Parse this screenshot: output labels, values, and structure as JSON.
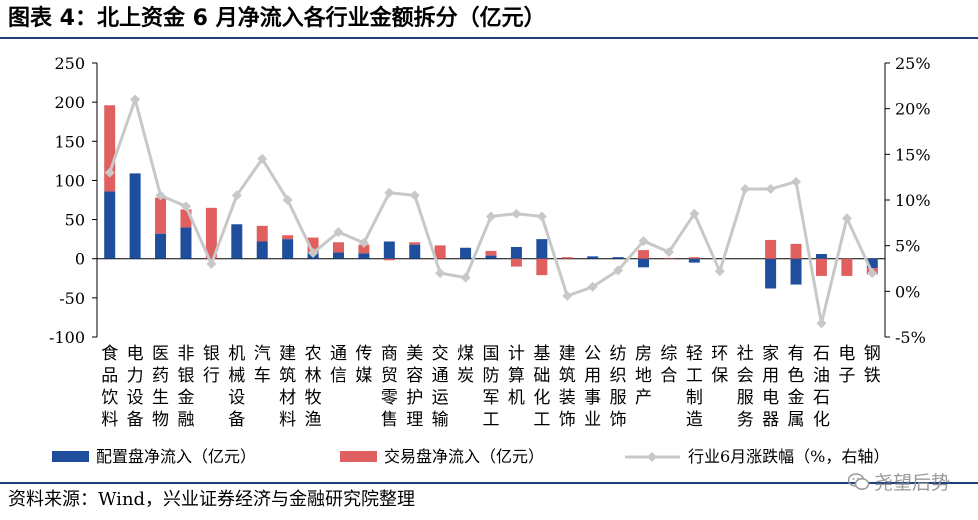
{
  "title": "图表 4：北上资金 6 月净流入各行业金额拆分（亿元）",
  "source": "资料来源：Wind，兴业证券经济与金融研究院整理",
  "watermark": "尧望后势",
  "colors": {
    "alloc": "#1f4e9c",
    "trade": "#e06060",
    "line": "#c8c8c8",
    "marker": "#c8c8c8"
  },
  "chart_data": {
    "type": "bar",
    "categories": [
      "食品饮料",
      "电力设备",
      "医药生物",
      "非银金融",
      "银行",
      "机械设备",
      "汽车",
      "建筑材料",
      "农林牧渔",
      "通信",
      "传媒",
      "商贸零售",
      "美容护理",
      "交通运输",
      "煤炭",
      "国防军工",
      "计算机",
      "基础化工",
      "建筑装饰",
      "公用事业",
      "纺织服饰",
      "房地产",
      "综合",
      "轻工制造",
      "环保",
      "社会服务",
      "家用电器",
      "有色金属",
      "石油石化",
      "电子",
      "钢铁"
    ],
    "series": [
      {
        "name": "配置盘净流入（亿元）",
        "type": "bar",
        "values": [
          86,
          109,
          32,
          40,
          0,
          44,
          22,
          25,
          8,
          8,
          7,
          22,
          18,
          0,
          14,
          4,
          15,
          25,
          0,
          3,
          2,
          -11,
          0,
          -5,
          0,
          0,
          -38,
          -33,
          6,
          0,
          -12
        ]
      },
      {
        "name": "交易盘净流入（亿元）",
        "type": "bar",
        "values": [
          110,
          0,
          46,
          23,
          65,
          0,
          20,
          5,
          19,
          13,
          11,
          -2,
          3,
          17,
          0,
          6,
          -10,
          -21,
          2,
          0,
          0,
          11,
          1,
          2,
          0,
          0,
          24,
          19,
          -22,
          -22,
          -8
        ]
      },
      {
        "name": "行业6月涨跌幅（%，右轴）",
        "type": "line",
        "axis": "right",
        "values": [
          13,
          21,
          10.5,
          9.3,
          3,
          10.5,
          14.5,
          10,
          4.2,
          6.5,
          5.3,
          10.8,
          10.5,
          2,
          1.5,
          8.2,
          8.5,
          8.2,
          -0.5,
          0.5,
          2.3,
          5.5,
          4.3,
          8.5,
          2.2,
          11.2,
          11.2,
          12,
          -3.5,
          8,
          2
        ]
      }
    ],
    "ylim": [
      -100,
      250
    ],
    "yticks": [
      -100,
      -50,
      0,
      50,
      100,
      150,
      200,
      250
    ],
    "y2lim": [
      -5,
      25
    ],
    "y2ticks": [
      -5,
      0,
      5,
      10,
      15,
      20,
      25
    ],
    "y2ticklabels": [
      "-5%",
      "0%",
      "5%",
      "10%",
      "15%",
      "20%",
      "25%"
    ],
    "legend_position": "bottom",
    "grid": false
  }
}
